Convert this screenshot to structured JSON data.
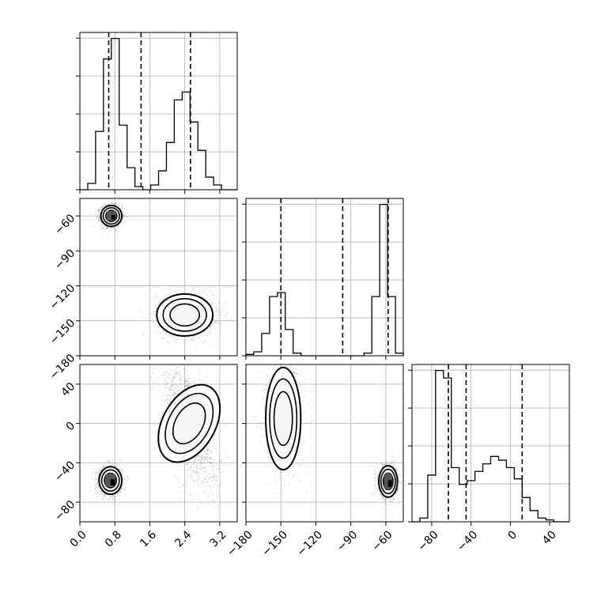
{
  "chart_data": {
    "type": "corner",
    "parameters": [
      "p0",
      "p1",
      "p2"
    ],
    "ranges": {
      "p0": [
        0.0,
        3.6
      ],
      "p1": [
        -180,
        -45
      ],
      "p2": [
        -100,
        60
      ]
    },
    "ticks": {
      "p0": {
        "values": [
          0.0,
          0.8,
          1.6,
          2.4,
          3.2
        ],
        "labels": [
          "0.0",
          "0.8",
          "1.6",
          "2.4",
          "3.2"
        ]
      },
      "p1": {
        "values": [
          -180,
          -150,
          -120,
          -90,
          -60
        ],
        "labels": [
          "−180",
          "−150",
          "−120",
          "−90",
          "−60"
        ]
      },
      "p2": {
        "values": [
          -80,
          -40,
          0,
          40
        ],
        "labels": [
          "−80",
          "−40",
          "0",
          "40"
        ]
      }
    },
    "grid": true,
    "histograms": [
      {
        "param": "p0",
        "bin_edges": [
          0.0,
          0.18,
          0.36,
          0.54,
          0.72,
          0.9,
          1.08,
          1.26,
          1.44,
          1.62,
          1.8,
          1.98,
          2.16,
          2.34,
          2.52,
          2.7,
          2.88,
          3.06,
          3.24,
          3.42,
          3.6
        ],
        "counts": [
          0.0,
          0.04,
          0.37,
          0.83,
          0.96,
          0.41,
          0.14,
          0.02,
          0.0,
          0.03,
          0.12,
          0.3,
          0.57,
          0.62,
          0.43,
          0.25,
          0.08,
          0.03,
          0.0,
          0.0
        ],
        "quantiles": [
          0.66,
          1.4,
          2.53
        ]
      },
      {
        "param": "p1",
        "bin_edges": [
          -180,
          -173.25,
          -166.5,
          -159.75,
          -153,
          -146.25,
          -139.5,
          -132.75,
          -126,
          -119.25,
          -112.5,
          -105.75,
          -99,
          -92.25,
          -85.5,
          -78.75,
          -72,
          -65.25,
          -58.5,
          -51.75,
          -45
        ],
        "counts": [
          0.01,
          0.03,
          0.17,
          0.45,
          0.48,
          0.2,
          0.02,
          0.0,
          0.0,
          0.0,
          0.0,
          0.0,
          0.0,
          0.0,
          0.0,
          0.02,
          0.45,
          1.15,
          0.45,
          0.02
        ],
        "quantiles": [
          -150,
          -97,
          -58
        ]
      },
      {
        "param": "p2",
        "bin_edges": [
          -100,
          -92,
          -84,
          -76,
          -68,
          -60,
          -52,
          -44,
          -36,
          -28,
          -20,
          -12,
          -4,
          4,
          12,
          20,
          28,
          36,
          44,
          52,
          60
        ],
        "counts": [
          0.0,
          0.02,
          0.25,
          0.81,
          0.77,
          0.29,
          0.2,
          0.22,
          0.27,
          0.31,
          0.35,
          0.33,
          0.29,
          0.23,
          0.13,
          0.06,
          0.02,
          0.01,
          0.0,
          0.0
        ],
        "quantiles": [
          -63,
          -45,
          12
        ]
      }
    ],
    "joint_2d": [
      {
        "x_param": "p0",
        "y_param": "p1",
        "modes": [
          {
            "center": [
              0.72,
              -60
            ],
            "spread": [
              0.12,
              4.5
            ],
            "tilt": 0.0,
            "weight": 0.5
          },
          {
            "center": [
              2.4,
              -145
            ],
            "spread": [
              0.32,
              9.0
            ],
            "tilt": 0.0,
            "weight": 0.5
          }
        ]
      },
      {
        "x_param": "p0",
        "y_param": "p2",
        "modes": [
          {
            "center": [
              0.7,
              -58
            ],
            "spread": [
              0.13,
              7.0
            ],
            "tilt": 0.0,
            "weight": 0.5
          },
          {
            "center": [
              2.5,
              0
            ],
            "spread": [
              0.3,
              26.0
            ],
            "tilt": -0.7,
            "weight": 0.5
          }
        ]
      },
      {
        "x_param": "p1",
        "y_param": "p2",
        "modes": [
          {
            "center": [
              -148,
              5
            ],
            "spread": [
              7.5,
              26.0
            ],
            "tilt": 0.0,
            "weight": 0.5
          },
          {
            "center": [
              -58,
              -59
            ],
            "spread": [
              4.0,
              8.0
            ],
            "tilt": 0.0,
            "weight": 0.5
          }
        ]
      }
    ],
    "quantile_line_style": "dashed",
    "colors": {
      "lines": "#000000",
      "grid": "#b0b0b0",
      "points": "#000000",
      "fill": "#ffffff"
    }
  }
}
